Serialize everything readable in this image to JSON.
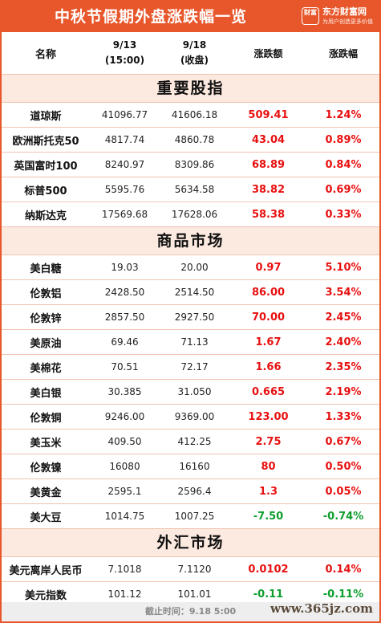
{
  "header": {
    "title": "中秋节假期外盘涨跌幅一览",
    "logo_mark": "财富",
    "logo_name": "东方财富网",
    "logo_slogan": "为用户创造更多价值"
  },
  "columns": {
    "name": "名称",
    "d1_date": "9/13",
    "d1_note": "(15:00)",
    "d2_date": "9/18",
    "d2_note": "(收盘)",
    "change": "涨跌额",
    "pct": "涨跌幅"
  },
  "sections": [
    {
      "title": "重要股指",
      "rows": [
        {
          "name": "道琼斯",
          "v1": "41096.77",
          "v2": "41606.18",
          "chg": "509.41",
          "pct": "1.24%",
          "dir": "up"
        },
        {
          "name": "欧洲斯托克50",
          "v1": "4817.74",
          "v2": "4860.78",
          "chg": "43.04",
          "pct": "0.89%",
          "dir": "up"
        },
        {
          "name": "英国富时100",
          "v1": "8240.97",
          "v2": "8309.86",
          "chg": "68.89",
          "pct": "0.84%",
          "dir": "up"
        },
        {
          "name": "标普500",
          "v1": "5595.76",
          "v2": "5634.58",
          "chg": "38.82",
          "pct": "0.69%",
          "dir": "up"
        },
        {
          "name": "纳斯达克",
          "v1": "17569.68",
          "v2": "17628.06",
          "chg": "58.38",
          "pct": "0.33%",
          "dir": "up"
        }
      ]
    },
    {
      "title": "商品市场",
      "rows": [
        {
          "name": "美白糖",
          "v1": "19.03",
          "v2": "20.00",
          "chg": "0.97",
          "pct": "5.10%",
          "dir": "up"
        },
        {
          "name": "伦敦铝",
          "v1": "2428.50",
          "v2": "2514.50",
          "chg": "86.00",
          "pct": "3.54%",
          "dir": "up"
        },
        {
          "name": "伦敦锌",
          "v1": "2857.50",
          "v2": "2927.50",
          "chg": "70.00",
          "pct": "2.45%",
          "dir": "up"
        },
        {
          "name": "美原油",
          "v1": "69.46",
          "v2": "71.13",
          "chg": "1.67",
          "pct": "2.40%",
          "dir": "up"
        },
        {
          "name": "美棉花",
          "v1": "70.51",
          "v2": "72.17",
          "chg": "1.66",
          "pct": "2.35%",
          "dir": "up"
        },
        {
          "name": "美白银",
          "v1": "30.385",
          "v2": "31.050",
          "chg": "0.665",
          "pct": "2.19%",
          "dir": "up"
        },
        {
          "name": "伦敦铜",
          "v1": "9246.00",
          "v2": "9369.00",
          "chg": "123.00",
          "pct": "1.33%",
          "dir": "up"
        },
        {
          "name": "美玉米",
          "v1": "409.50",
          "v2": "412.25",
          "chg": "2.75",
          "pct": "0.67%",
          "dir": "up"
        },
        {
          "name": "伦敦镍",
          "v1": "16080",
          "v2": "16160",
          "chg": "80",
          "pct": "0.50%",
          "dir": "up"
        },
        {
          "name": "美黄金",
          "v1": "2595.1",
          "v2": "2596.4",
          "chg": "1.3",
          "pct": "0.05%",
          "dir": "up"
        },
        {
          "name": "美大豆",
          "v1": "1014.75",
          "v2": "1007.25",
          "chg": "-7.50",
          "pct": "-0.74%",
          "dir": "down"
        }
      ]
    },
    {
      "title": "外汇市场",
      "rows": [
        {
          "name": "美元离岸人民币",
          "v1": "7.1018",
          "v2": "7.1120",
          "chg": "0.0102",
          "pct": "0.14%",
          "dir": "up"
        },
        {
          "name": "美元指数",
          "v1": "101.12",
          "v2": "101.01",
          "chg": "-0.11",
          "pct": "-0.11%",
          "dir": "down"
        }
      ]
    }
  ],
  "footer": {
    "cutoff": "截止时间：9.18 5:00",
    "watermark": "www.365jz.com"
  },
  "colors": {
    "accent": "#e8572b",
    "section_bg": "#fce9df",
    "up": "#e81010",
    "down": "#0e9e2e"
  }
}
